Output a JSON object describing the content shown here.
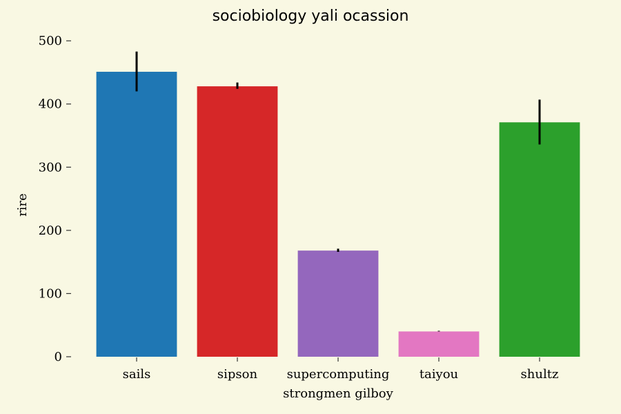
{
  "chart_data": {
    "type": "bar",
    "title": "sociobiology yali ocassion",
    "xlabel": "strongmen gilboy",
    "ylabel": "rire",
    "categories": [
      "sails",
      "sipson",
      "supercomputing",
      "taiyou",
      "shultz"
    ],
    "values": [
      451,
      428,
      168,
      40,
      371
    ],
    "error_low": [
      420,
      424,
      166,
      40,
      336
    ],
    "error_high": [
      483,
      434,
      171,
      41,
      407
    ],
    "colors": [
      "#1f77b4",
      "#d62728",
      "#9467bd",
      "#e377c2",
      "#2ca02c"
    ],
    "ylim": [
      0,
      510
    ],
    "yticks": [
      0,
      100,
      200,
      300,
      400,
      500
    ],
    "grid": false,
    "background": "#f9f8e3"
  }
}
